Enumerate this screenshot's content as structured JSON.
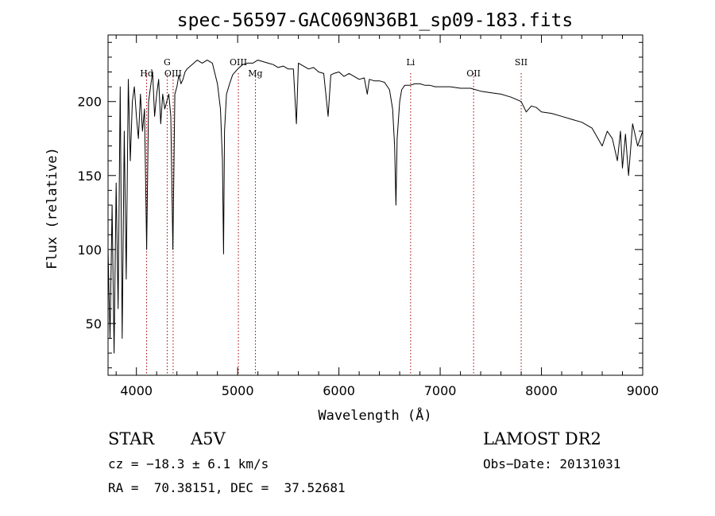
{
  "chart_data": {
    "type": "line",
    "title": "spec-56597-GAC069N36B1_sp09-183.fits",
    "xlabel": "Wavelength (Å)",
    "ylabel": "Flux (relative)",
    "xlim": [
      3720,
      9000
    ],
    "ylim": [
      15,
      245
    ],
    "x_ticks": [
      4000,
      5000,
      6000,
      7000,
      8000,
      9000
    ],
    "y_ticks": [
      50,
      100,
      150,
      200
    ],
    "line_color": "#000000",
    "marker_color": "#a00000",
    "series": [
      {
        "x": [
          3720,
          3740,
          3760,
          3780,
          3800,
          3820,
          3840,
          3860,
          3880,
          3900,
          3920,
          3940,
          3960,
          3980,
          4000,
          4020,
          4040,
          4060,
          4080,
          4101,
          4120,
          4140,
          4160,
          4180,
          4200,
          4220,
          4240,
          4260,
          4280,
          4300,
          4320,
          4340,
          4360,
          4380,
          4400,
          4420,
          4440,
          4460,
          4480,
          4500,
          4550,
          4600,
          4650,
          4700,
          4750,
          4800,
          4830,
          4850,
          4861,
          4870,
          4890,
          4920,
          4950,
          5000,
          5050,
          5100,
          5150,
          5200,
          5250,
          5300,
          5350,
          5400,
          5450,
          5500,
          5550,
          5580,
          5600,
          5650,
          5700,
          5750,
          5800,
          5850,
          5893,
          5920,
          5950,
          6000,
          6050,
          6100,
          6150,
          6200,
          6250,
          6280,
          6300,
          6350,
          6400,
          6450,
          6500,
          6530,
          6550,
          6563,
          6575,
          6600,
          6620,
          6650,
          6700,
          6750,
          6800,
          6850,
          6900,
          6950,
          7000,
          7100,
          7200,
          7300,
          7400,
          7500,
          7600,
          7700,
          7800,
          7850,
          7900,
          7950,
          8000,
          8100,
          8200,
          8300,
          8400,
          8500,
          8550,
          8600,
          8650,
          8700,
          8750,
          8780,
          8800,
          8830,
          8860,
          8900,
          8950,
          9000
        ],
        "y": [
          100,
          40,
          130,
          30,
          145,
          60,
          210,
          40,
          180,
          80,
          215,
          160,
          200,
          210,
          190,
          175,
          205,
          180,
          195,
          100,
          200,
          210,
          220,
          190,
          205,
          215,
          185,
          205,
          195,
          200,
          205,
          190,
          100,
          205,
          210,
          218,
          212,
          215,
          220,
          222,
          225,
          228,
          226,
          228,
          226,
          212,
          195,
          160,
          97,
          180,
          205,
          212,
          218,
          222,
          225,
          226,
          226,
          228,
          227,
          226,
          225,
          223,
          224,
          222,
          222,
          185,
          226,
          224,
          222,
          223,
          220,
          219,
          190,
          218,
          219,
          220,
          217,
          219,
          217,
          215,
          216,
          205,
          215,
          214,
          214,
          213,
          208,
          195,
          170,
          130,
          175,
          200,
          208,
          211,
          211,
          212,
          212,
          211,
          211,
          210,
          210,
          210,
          209,
          209,
          207,
          206,
          205,
          203,
          200,
          193,
          197,
          196,
          193,
          192,
          190,
          188,
          186,
          182,
          176,
          170,
          180,
          175,
          160,
          180,
          155,
          178,
          150,
          185,
          170,
          180
        ]
      }
    ],
    "lines": [
      {
        "label": "Hd",
        "x": 4101
      },
      {
        "label": "G",
        "x": 4304
      },
      {
        "label": "OIII",
        "x": 4363
      },
      {
        "label": "OIII",
        "x": 5007
      },
      {
        "label": "Mg",
        "x": 5175
      },
      {
        "label": "Li",
        "x": 6708
      },
      {
        "label": "OII",
        "x": 7330
      },
      {
        "label": "SII",
        "x": 7800
      }
    ]
  },
  "info": {
    "object_class": "STAR",
    "subclass": "A5V",
    "survey": "LAMOST DR2",
    "cz": "cz = −18.3 ± 6.1 km/s",
    "obs_date": "Obs−Date: 20131031",
    "coords": "RA =  70.38151, DEC =  37.52681"
  }
}
